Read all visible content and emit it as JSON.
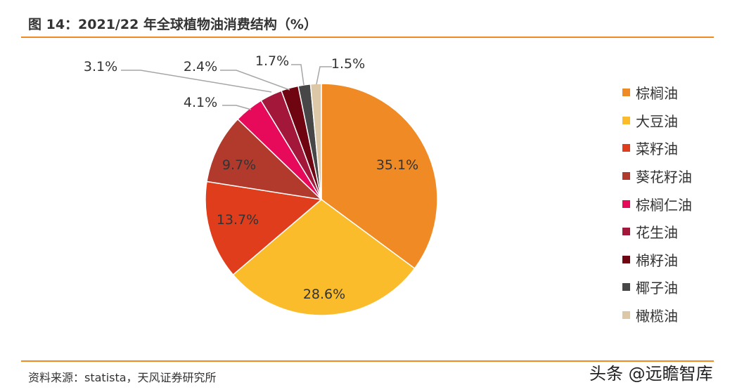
{
  "header": {
    "title": "图 14：2021/22 年全球植物油消费结构（%）"
  },
  "footer": {
    "source": "资料来源：statista，天风证券研究所",
    "watermark": "头条 @远瞻智库"
  },
  "chart_data": {
    "type": "pie",
    "title": "图 14：2021/22 年全球植物油消费结构（%）",
    "unit": "%",
    "legend_position": "right",
    "start": "12 o'clock, clockwise",
    "slices": [
      {
        "name": "棕榈油",
        "value": 35.1,
        "label": "35.1%",
        "color": "#f08a24"
      },
      {
        "name": "大豆油",
        "value": 28.6,
        "label": "28.6%",
        "color": "#fbbc2b"
      },
      {
        "name": "菜籽油",
        "value": 13.7,
        "label": "13.7%",
        "color": "#df3d1c"
      },
      {
        "name": "葵花籽油",
        "value": 9.7,
        "label": "9.7%",
        "color": "#b23a2c"
      },
      {
        "name": "棕榈仁油",
        "value": 4.1,
        "label": "4.1%",
        "color": "#e80a5a"
      },
      {
        "name": "花生油",
        "value": 3.1,
        "label": "3.1%",
        "color": "#a3173b"
      },
      {
        "name": "棉籽油",
        "value": 2.4,
        "label": "2.4%",
        "color": "#6e0511"
      },
      {
        "name": "椰子油",
        "value": 1.7,
        "label": "1.7%",
        "color": "#474747"
      },
      {
        "name": "橄榄油",
        "value": 1.5,
        "label": "1.5%",
        "color": "#dcc8a6"
      }
    ]
  }
}
